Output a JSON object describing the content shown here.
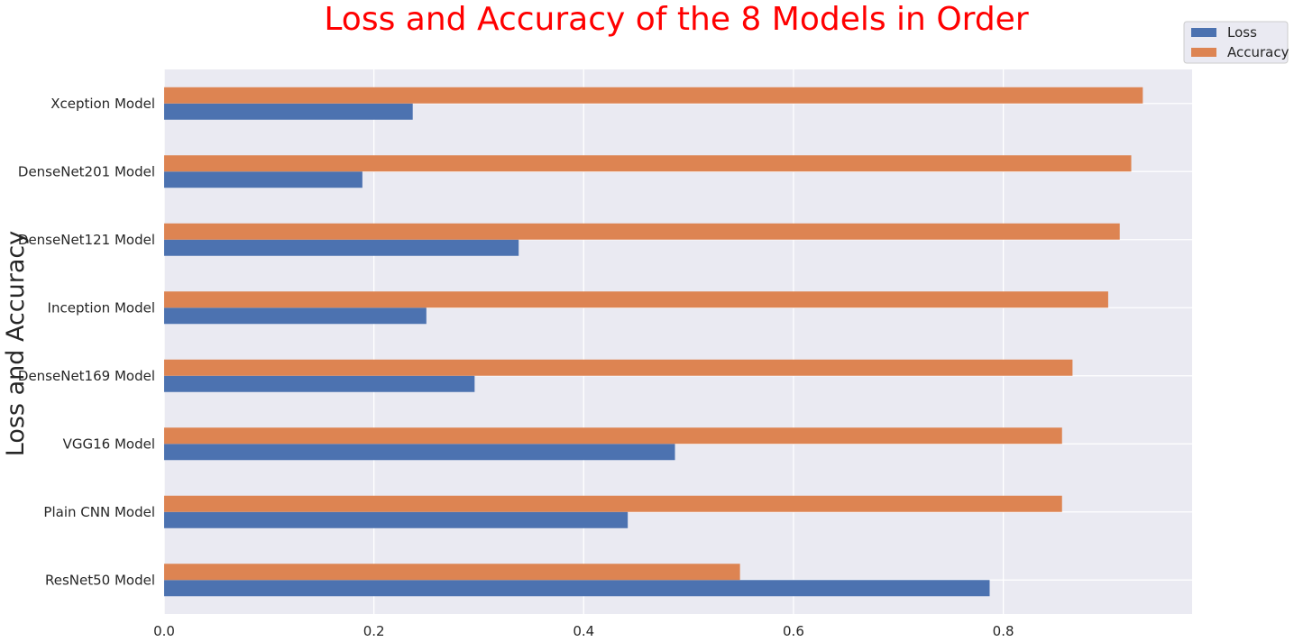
{
  "chart_data": {
    "type": "bar",
    "orientation": "horizontal",
    "title": "Loss and Accuracy of the 8 Models in Order",
    "title_color": "#ff0000",
    "xlabel": "",
    "ylabel": "Loss and Accuracy",
    "xlim": [
      0,
      0.98
    ],
    "xticks": [
      0.0,
      0.2,
      0.4,
      0.6,
      0.8
    ],
    "xtick_labels": [
      "0.0",
      "0.2",
      "0.4",
      "0.6",
      "0.8"
    ],
    "categories": [
      "ResNet50 Model",
      "Plain CNN Model",
      "VGG16 Model",
      "DenseNet169 Model",
      "Inception Model",
      "DenseNet121 Model",
      "DenseNet201 Model",
      "Xception Model"
    ],
    "series": [
      {
        "name": "Loss",
        "color": "#4c72b0",
        "values": [
          0.787,
          0.442,
          0.487,
          0.296,
          0.25,
          0.338,
          0.189,
          0.237
        ]
      },
      {
        "name": "Accuracy",
        "color": "#dd8452",
        "values": [
          0.549,
          0.856,
          0.856,
          0.866,
          0.9,
          0.911,
          0.922,
          0.933
        ]
      }
    ],
    "grid": true,
    "background_color": "#eaeaf2",
    "legend_position": "top-right"
  }
}
